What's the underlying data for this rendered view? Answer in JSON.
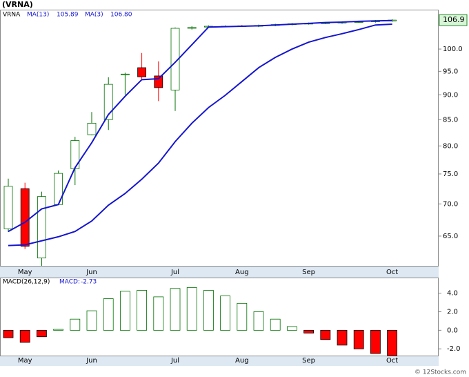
{
  "chart_data": [
    {
      "type": "candlestick",
      "title": "(VRNA)",
      "symbol": "VRNA",
      "categories": [
        null,
        "May",
        null,
        null,
        null,
        "Jun",
        null,
        null,
        null,
        null,
        "Jul",
        null,
        null,
        null,
        "Aug",
        null,
        null,
        null,
        "Sep",
        null,
        null,
        null,
        null,
        "Oct"
      ],
      "open": [
        66.1,
        72.5,
        61.8,
        69.9,
        75.9,
        82.1,
        85.0,
        94.3,
        95.8,
        94.0,
        91.0,
        104.9,
        105.2,
        105.4,
        105.5,
        105.4,
        105.6,
        105.8,
        106.0,
        106.1,
        106.2,
        106.4,
        106.5,
        106.7
      ],
      "high": [
        74.2,
        73.5,
        72.0,
        75.6,
        81.7,
        86.5,
        93.7,
        94.7,
        99.1,
        97.2,
        105.1,
        105.4,
        105.6,
        105.6,
        105.7,
        105.8,
        106.0,
        106.2,
        106.3,
        106.4,
        106.6,
        106.7,
        106.9,
        107.1
      ],
      "low": [
        65.6,
        63.1,
        60.7,
        69.8,
        73.1,
        82.0,
        83.0,
        90.0,
        93.2,
        88.7,
        86.7,
        104.6,
        105.0,
        105.2,
        105.3,
        105.2,
        105.4,
        105.6,
        105.8,
        105.9,
        106.0,
        106.2,
        106.3,
        106.5
      ],
      "close": [
        72.9,
        63.5,
        71.2,
        75.1,
        81.0,
        84.3,
        92.2,
        94.4,
        93.8,
        91.5,
        104.9,
        105.1,
        105.4,
        105.4,
        105.4,
        105.6,
        105.8,
        106.0,
        106.1,
        106.2,
        106.4,
        106.5,
        106.7,
        106.9
      ],
      "up_color": "#007000",
      "down_color": "#ff0000",
      "series": [
        {
          "name": "MA(13)",
          "color": "#1515d0",
          "last": 105.89,
          "values": [
            63.6,
            63.7,
            64.3,
            64.9,
            65.7,
            67.3,
            69.8,
            71.7,
            74.1,
            76.9,
            80.8,
            84.3,
            87.4,
            89.9,
            92.8,
            95.8,
            98.1,
            100.0,
            101.6,
            102.7,
            103.6,
            104.6,
            105.7,
            105.9
          ]
        },
        {
          "name": "MA(3)",
          "color": "#1515d0",
          "last": {
            "value": 106.8,
            "label": "106.80"
          },
          "values": [
            65.7,
            67.1,
            69.2,
            69.9,
            76.1,
            80.6,
            86.0,
            89.7,
            93.2,
            93.4,
            97.0,
            101.0,
            105.2,
            105.3,
            105.4,
            105.5,
            105.7,
            105.9,
            106.1,
            106.3,
            106.4,
            106.6,
            106.7,
            106.8
          ]
        }
      ],
      "last_price": 106.9,
      "log_scale": true,
      "ylim": [
        60.6,
        109.5
      ],
      "yticks": [
        {
          "value": 65,
          "label": "65.0"
        },
        {
          "value": 70,
          "label": "70.0"
        },
        {
          "value": 75,
          "label": "75.0"
        },
        {
          "value": 80,
          "label": "80.0"
        },
        {
          "value": 85,
          "label": "85.0"
        },
        {
          "value": 90,
          "label": "90.0"
        },
        {
          "value": 95,
          "label": "95.0"
        },
        {
          "value": 100,
          "label": "100.0"
        }
      ]
    },
    {
      "type": "bar",
      "title": "MACD(26,12,9)",
      "indicator_label": "MACD:",
      "last": -2.73,
      "categories": [
        null,
        "May",
        null,
        null,
        null,
        "Jun",
        null,
        null,
        null,
        null,
        "Jul",
        null,
        null,
        null,
        "Aug",
        null,
        null,
        null,
        "Sep",
        null,
        null,
        null,
        null,
        "Oct"
      ],
      "values": [
        -0.8,
        -1.3,
        -0.7,
        0.1,
        1.2,
        2.1,
        3.4,
        4.2,
        4.3,
        3.6,
        4.5,
        4.6,
        4.3,
        3.7,
        2.9,
        2.0,
        1.2,
        0.4,
        -0.3,
        -1.0,
        -1.6,
        -2.0,
        -2.5,
        -2.73
      ],
      "up_color": "#007000",
      "down_color": "#ff0000",
      "ylim": [
        -2.8,
        5.6
      ],
      "yticks": [
        {
          "value": -2,
          "label": "-2.0"
        },
        {
          "value": 0,
          "label": "0.0"
        },
        {
          "value": 2,
          "label": "2.0"
        },
        {
          "value": 4,
          "label": "4.0"
        }
      ]
    }
  ],
  "watermark": "© 12Stocks.com"
}
